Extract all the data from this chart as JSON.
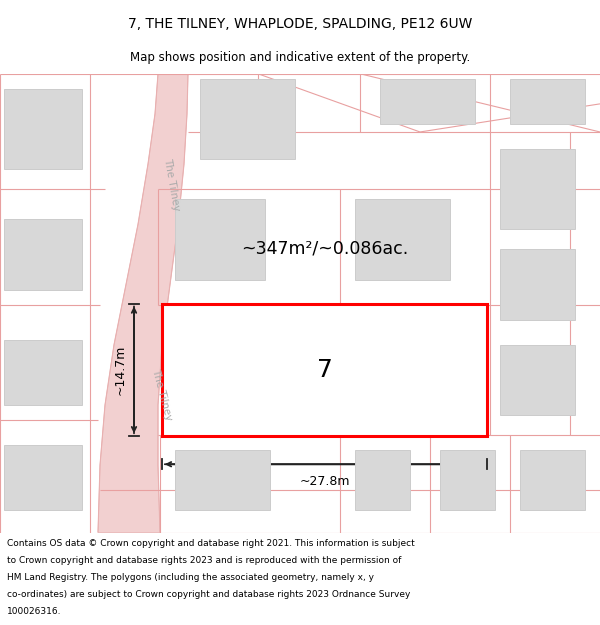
{
  "title": "7, THE TILNEY, WHAPLODE, SPALDING, PE12 6UW",
  "subtitle": "Map shows position and indicative extent of the property.",
  "footer": "Contains OS data © Crown copyright and database right 2021. This information is subject to Crown copyright and database rights 2023 and is reproduced with the permission of HM Land Registry. The polygons (including the associated geometry, namely x, y co-ordinates) are subject to Crown copyright and database rights 2023 Ordnance Survey 100026316.",
  "bg_color": "#ffffff",
  "map_bg": "#f5f5f5",
  "road_fill": "#f2d0d0",
  "road_edge": "#e8b0b0",
  "parcel_color": "#e8a0a0",
  "building_fill": "#d8d8d8",
  "building_edge": "#cccccc",
  "highlight_fill": "#ffffff",
  "highlight_edge": "#ff0000",
  "highlight_lw": 2.2,
  "dim_color": "#222222",
  "area_text": "~347m²/~0.086ac.",
  "label_7": "7",
  "dim_width": "~27.8m",
  "dim_height": "~14.7m",
  "road_label": "The Tilney",
  "road_text_color": "#aaaaaa",
  "title_fontsize": 10,
  "subtitle_fontsize": 8.5,
  "footer_fontsize": 6.5
}
